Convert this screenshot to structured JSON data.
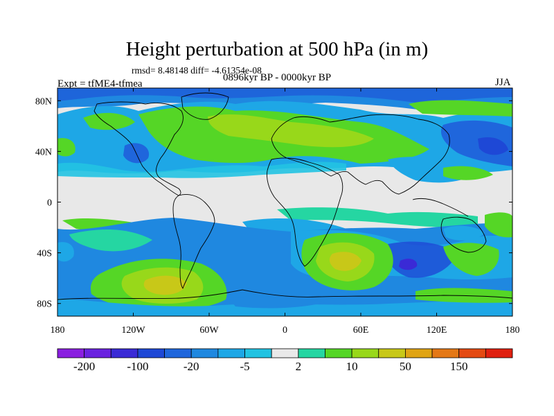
{
  "title": "Height perturbation at 500 hPa (in m)",
  "stats": "rmsd= 8.48148 diff= -4.61354e-08",
  "experiment": "Expt = tfME4-tfmea",
  "period": "0896kyr BP - 0000kyr BP",
  "season": "JJA",
  "map": {
    "lon_range": [
      -180,
      180
    ],
    "lat_range": [
      -90,
      90
    ],
    "lon_ticks": [
      {
        "value": -180,
        "label": "180"
      },
      {
        "value": -120,
        "label": "120W"
      },
      {
        "value": -60,
        "label": "60W"
      },
      {
        "value": 0,
        "label": "0"
      },
      {
        "value": 60,
        "label": "60E"
      },
      {
        "value": 120,
        "label": "120E"
      },
      {
        "value": 180,
        "label": "180"
      }
    ],
    "lat_ticks": [
      {
        "value": 80,
        "label": "80N"
      },
      {
        "value": 40,
        "label": "40N"
      },
      {
        "value": 0,
        "label": "0"
      },
      {
        "value": -40,
        "label": "40S"
      },
      {
        "value": -80,
        "label": "80S"
      }
    ],
    "background_color": "#e8e8e8",
    "coastline_color": "#000000"
  },
  "colorbar": {
    "colors": [
      "#8a1fe0",
      "#6a22e0",
      "#3a2ad6",
      "#1e48d6",
      "#1f66dc",
      "#1f88e0",
      "#1ea7e6",
      "#22c3e2",
      "#e9e9e9",
      "#25d6a2",
      "#55d626",
      "#98d81a",
      "#c8c818",
      "#e0a414",
      "#e47816",
      "#e44a12",
      "#e02010"
    ],
    "labels": [
      {
        "after_box": 1,
        "text": "-200"
      },
      {
        "after_box": 3,
        "text": "-100"
      },
      {
        "after_box": 5,
        "text": "-20"
      },
      {
        "after_box": 7,
        "text": "-5"
      },
      {
        "after_box": 9,
        "text": "2"
      },
      {
        "after_box": 11,
        "text": "10"
      },
      {
        "after_box": 13,
        "text": "50"
      },
      {
        "after_box": 15,
        "text": "150"
      }
    ]
  }
}
